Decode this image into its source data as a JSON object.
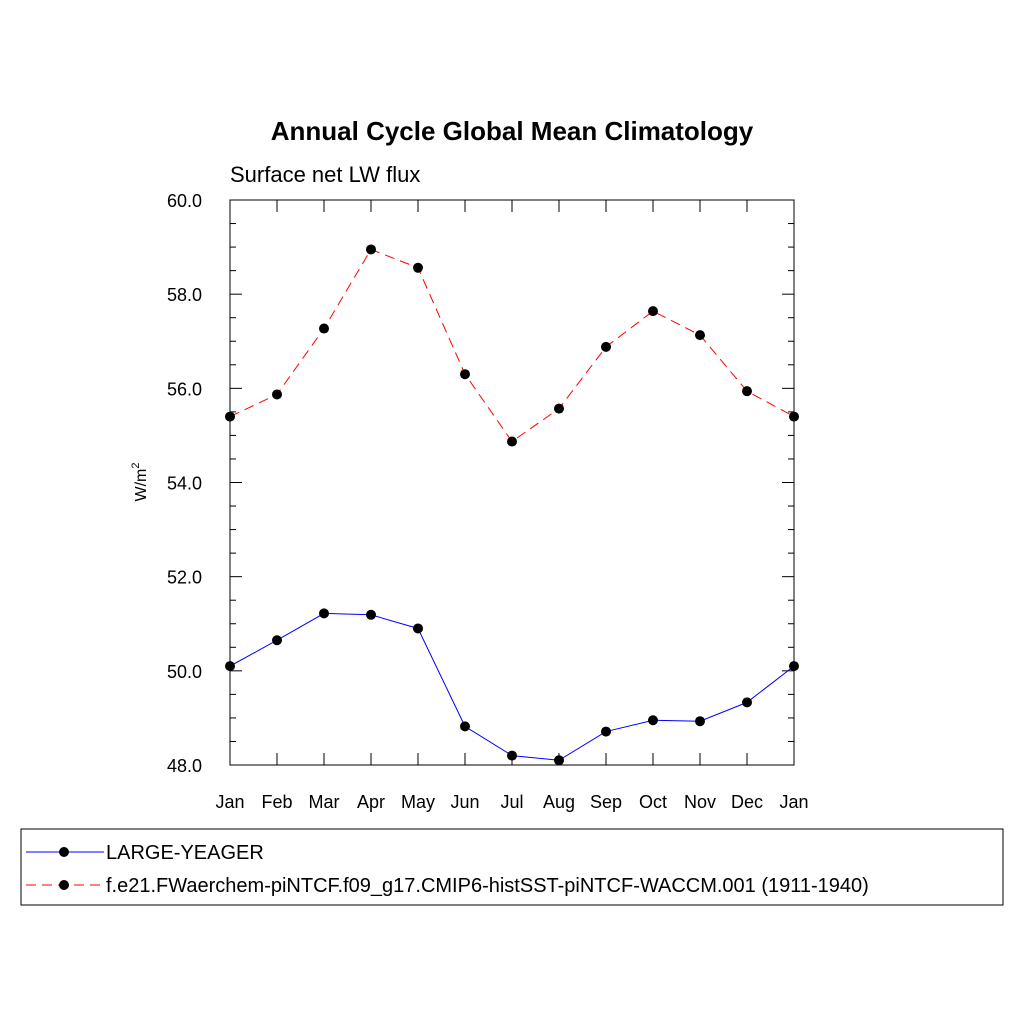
{
  "chart_data": {
    "type": "line",
    "title": "Annual Cycle Global Mean Climatology",
    "subtitle": "Surface net LW flux",
    "ylabel": "W/m",
    "ylabel_superscript": "2",
    "xlabel": "",
    "categories": [
      "Jan",
      "Feb",
      "Mar",
      "Apr",
      "May",
      "Jun",
      "Jul",
      "Aug",
      "Sep",
      "Oct",
      "Nov",
      "Dec",
      "Jan"
    ],
    "ylim": [
      48.0,
      60.0
    ],
    "yticks": [
      "48.0",
      "50.0",
      "52.0",
      "54.0",
      "56.0",
      "58.0",
      "60.0"
    ],
    "grid": false,
    "legend_position": "bottom",
    "series": [
      {
        "name": "LARGE-YEAGER",
        "color": "#0000ff",
        "line_style": "solid",
        "marker": "filled-circle",
        "values": [
          50.1,
          50.65,
          51.22,
          51.19,
          50.9,
          48.82,
          48.2,
          48.1,
          48.71,
          48.95,
          48.93,
          49.33,
          50.1
        ]
      },
      {
        "name": "f.e21.FWaerchem-piNTCF.f09_g17.CMIP6-histSST-piNTCF-WACCM.001 (1911-1940)",
        "color": "#ff0000",
        "line_style": "dashed",
        "marker": "filled-circle",
        "values": [
          55.4,
          55.87,
          57.27,
          58.95,
          58.56,
          56.3,
          54.87,
          55.57,
          56.88,
          57.64,
          57.13,
          55.94,
          55.4
        ]
      }
    ]
  }
}
